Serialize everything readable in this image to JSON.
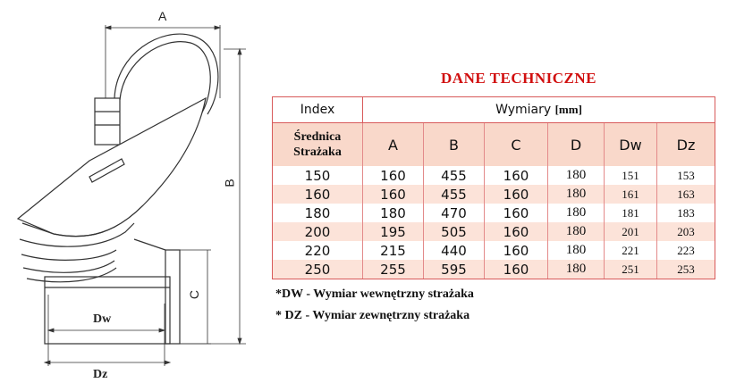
{
  "drawing": {
    "labels": {
      "a": "A",
      "b": "B",
      "c": "C",
      "dw": "Dw",
      "dz": "Dz"
    }
  },
  "title": "DANE TECHNICZNE",
  "table": {
    "index_label": "Index",
    "dimensions_label": "Wymiary",
    "unit": "[mm]",
    "row_header": [
      "Średnica",
      "Strażaka"
    ],
    "columns": [
      "A",
      "B",
      "C",
      "D",
      "Dw",
      "Dz"
    ],
    "rows": [
      {
        "index": "150",
        "values": [
          "160",
          "455",
          "160",
          "180",
          "151",
          "153"
        ]
      },
      {
        "index": "160",
        "values": [
          "160",
          "455",
          "160",
          "180",
          "161",
          "163"
        ]
      },
      {
        "index": "180",
        "values": [
          "180",
          "470",
          "160",
          "180",
          "181",
          "183"
        ]
      },
      {
        "index": "200",
        "values": [
          "195",
          "505",
          "160",
          "180",
          "201",
          "203"
        ]
      },
      {
        "index": "220",
        "values": [
          "215",
          "440",
          "160",
          "180",
          "221",
          "223"
        ]
      },
      {
        "index": "250",
        "values": [
          "255",
          "595",
          "160",
          "180",
          "251",
          "253"
        ]
      }
    ]
  },
  "notes": [
    "*DW - Wymiar wewnętrzny strażaka",
    "* DZ - Wymiar zewnętrzny strażaka"
  ],
  "colors": {
    "title": "#d10f0f",
    "border": "#d85a5a",
    "header_fill": "#f9d8ca",
    "alt_row_fill": "#fce3d9"
  }
}
